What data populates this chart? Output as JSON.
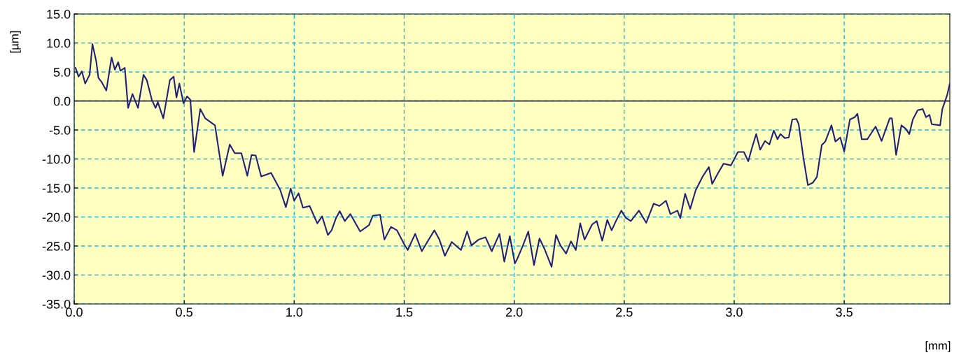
{
  "chart_data": {
    "type": "line",
    "xlabel": "[mm]",
    "ylabel": "[µm]",
    "xlim": [
      0,
      3.98
    ],
    "xticks": [
      {
        "value": 0,
        "label": "0.0"
      },
      0.5,
      {
        "value": 1,
        "label": "1.0"
      },
      1.5,
      {
        "value": 2,
        "label": "2.0"
      },
      2.5,
      {
        "value": 3,
        "label": "3.0"
      },
      3.5
    ],
    "ylim": [
      -35,
      15
    ],
    "yticks": [
      {
        "value": -35,
        "label": "-35.0"
      },
      {
        "value": -30,
        "label": "-30.0"
      },
      {
        "value": -25,
        "label": "-25.0"
      },
      {
        "value": -20,
        "label": "-20.0"
      },
      {
        "value": -15,
        "label": "-15.0"
      },
      {
        "value": -10,
        "label": "-10.0"
      },
      {
        "value": -5,
        "label": "-5.0"
      },
      {
        "value": 0,
        "label": "0.0"
      },
      {
        "value": 5,
        "label": "5.0"
      },
      {
        "value": 10,
        "label": "10.0"
      },
      {
        "value": 15,
        "label": "15.0"
      }
    ],
    "grid": true,
    "marker": "none",
    "line_style": "solid",
    "ref_lines": [
      {
        "axis": "y",
        "value": 0,
        "color": "#000000"
      }
    ],
    "series": [
      {
        "color": "#20207a",
        "x": [
          0.006,
          0.02,
          0.035,
          0.05,
          0.07,
          0.083,
          0.1,
          0.11,
          0.124,
          0.146,
          0.17,
          0.185,
          0.2,
          0.21,
          0.23,
          0.245,
          0.265,
          0.29,
          0.315,
          0.33,
          0.353,
          0.37,
          0.38,
          0.405,
          0.435,
          0.452,
          0.465,
          0.478,
          0.497,
          0.513,
          0.528,
          0.545,
          0.573,
          0.596,
          0.64,
          0.675,
          0.707,
          0.73,
          0.76,
          0.787,
          0.806,
          0.825,
          0.85,
          0.895,
          0.936,
          0.962,
          0.984,
          1.0,
          1.02,
          1.04,
          1.07,
          1.105,
          1.127,
          1.153,
          1.17,
          1.19,
          1.207,
          1.23,
          1.255,
          1.3,
          1.34,
          1.357,
          1.39,
          1.41,
          1.44,
          1.467,
          1.5,
          1.516,
          1.55,
          1.58,
          1.605,
          1.637,
          1.66,
          1.685,
          1.716,
          1.758,
          1.786,
          1.806,
          1.838,
          1.87,
          1.898,
          1.933,
          1.955,
          1.98,
          2.003,
          2.013,
          2.04,
          2.064,
          2.09,
          2.115,
          2.14,
          2.17,
          2.19,
          2.21,
          2.236,
          2.258,
          2.28,
          2.3,
          2.32,
          2.354,
          2.375,
          2.4,
          2.423,
          2.443,
          2.465,
          2.487,
          2.506,
          2.53,
          2.567,
          2.6,
          2.634,
          2.66,
          2.69,
          2.71,
          2.742,
          2.755,
          2.777,
          2.8,
          2.825,
          2.857,
          2.885,
          2.9,
          2.927,
          2.952,
          2.985,
          3.017,
          3.044,
          3.064,
          3.08,
          3.1,
          3.118,
          3.14,
          3.16,
          3.18,
          3.197,
          3.21,
          3.23,
          3.248,
          3.264,
          3.283,
          3.293,
          3.315,
          3.335,
          3.357,
          3.376,
          3.398,
          3.414,
          3.442,
          3.46,
          3.482,
          3.5,
          3.526,
          3.548,
          3.56,
          3.58,
          3.605,
          3.643,
          3.67,
          3.707,
          3.717,
          3.736,
          3.76,
          3.78,
          3.796,
          3.812,
          3.834,
          3.857,
          3.872,
          3.888,
          3.898,
          3.936,
          3.946,
          3.968,
          3.98
        ],
        "values": [
          5.7,
          4.2,
          5.1,
          3.0,
          4.5,
          9.8,
          6.9,
          4.0,
          3.3,
          1.8,
          7.5,
          5.4,
          6.7,
          5.2,
          5.7,
          -1.2,
          1.2,
          -1.2,
          4.5,
          3.6,
          0.2,
          -1.2,
          -0.2,
          -3.0,
          3.6,
          4.2,
          0.6,
          3.0,
          -0.4,
          0.8,
          0.2,
          -8.8,
          -1.4,
          -3.0,
          -4.2,
          -12.9,
          -7.5,
          -9.0,
          -9.0,
          -12.9,
          -9.3,
          -9.4,
          -13.0,
          -12.4,
          -15.3,
          -18.3,
          -15.1,
          -17.2,
          -15.9,
          -18.4,
          -18.1,
          -21.1,
          -19.9,
          -23.1,
          -22.3,
          -20.2,
          -19.0,
          -20.7,
          -19.5,
          -22.5,
          -21.4,
          -19.8,
          -19.6,
          -23.9,
          -21.7,
          -22.3,
          -24.7,
          -25.7,
          -22.9,
          -25.9,
          -24.3,
          -22.3,
          -23.9,
          -26.7,
          -24.3,
          -25.7,
          -22.5,
          -24.9,
          -23.9,
          -23.5,
          -25.9,
          -22.9,
          -27.7,
          -23.3,
          -28.0,
          -27.3,
          -24.9,
          -22.5,
          -28.3,
          -23.7,
          -25.7,
          -28.6,
          -23.1,
          -24.9,
          -26.3,
          -24.2,
          -25.7,
          -21.1,
          -23.9,
          -21.3,
          -20.7,
          -24.1,
          -20.5,
          -22.3,
          -20.5,
          -18.9,
          -20.1,
          -20.7,
          -18.9,
          -21.0,
          -17.7,
          -18.1,
          -17.2,
          -19.5,
          -18.9,
          -20.2,
          -16.0,
          -18.6,
          -15.4,
          -13.0,
          -11.4,
          -14.3,
          -12.4,
          -10.8,
          -11.1,
          -8.8,
          -8.8,
          -10.4,
          -8.2,
          -5.7,
          -8.4,
          -6.9,
          -7.5,
          -5.1,
          -6.6,
          -5.7,
          -6.4,
          -6.3,
          -3.2,
          -3.1,
          -4.0,
          -9.9,
          -14.5,
          -14.1,
          -13.1,
          -7.6,
          -7.0,
          -4.2,
          -7.0,
          -6.3,
          -8.7,
          -3.2,
          -2.8,
          -2.2,
          -6.6,
          -6.6,
          -4.4,
          -6.9,
          -3.0,
          -3.0,
          -9.3,
          -4.2,
          -4.8,
          -5.7,
          -3.2,
          -1.6,
          -1.4,
          -2.8,
          -2.4,
          -4.0,
          -4.2,
          -1.4,
          1.0,
          3.0
        ]
      }
    ]
  }
}
